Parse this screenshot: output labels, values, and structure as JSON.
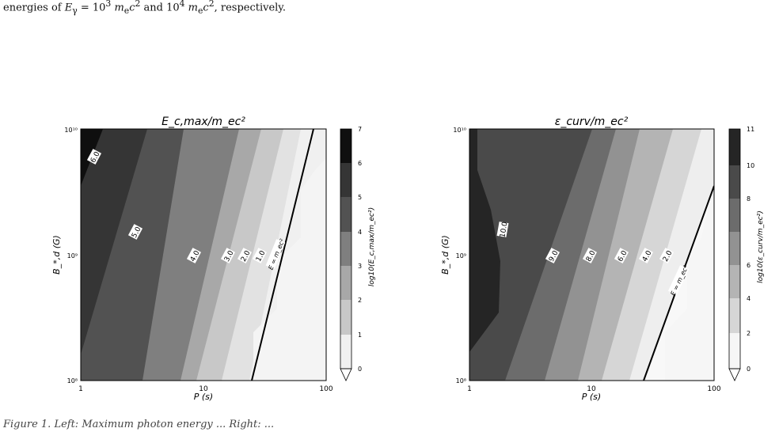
{
  "document": {
    "top_text": "energies of E_γ = 10³ m_ec² and 10⁴ m_ec², respectively.",
    "caption_fragment": "Figure 1. Left: Maximum photon energy ... Right: ..."
  },
  "chart_data": [
    {
      "type": "contour",
      "title": "E_c,max/m_ec²",
      "xlabel": "P (s)",
      "ylabel": "B_*,d (G)",
      "xscale": "log",
      "yscale": "log",
      "xlim": [
        1,
        100
      ],
      "ylim": [
        100000000.0,
        10000000000.0
      ],
      "x_ticks": [
        "1",
        "10",
        "100"
      ],
      "y_ticks": [
        "10⁸",
        "10⁹",
        "10¹⁰"
      ],
      "colorbar_label": "log10(E_c,max/m_ec²)",
      "colorbar_ticks": [
        "0",
        "1",
        "2",
        "3",
        "4",
        "5",
        "6",
        "7"
      ],
      "levels": [
        0,
        1,
        2,
        3,
        4,
        5,
        6,
        7
      ],
      "contour_labels": [
        "6.0",
        "5.0",
        "4.0",
        "3.0",
        "2.0",
        "1.0"
      ],
      "threshold_label": "E = m_ec²"
    },
    {
      "type": "contour",
      "title": "ε_curv/m_ec²",
      "xlabel": "P (s)",
      "ylabel": "B_*,d (G)",
      "xscale": "log",
      "yscale": "log",
      "xlim": [
        1,
        100
      ],
      "ylim": [
        100000000.0,
        10000000000.0
      ],
      "x_ticks": [
        "1",
        "10",
        "100"
      ],
      "y_ticks": [
        "10⁸",
        "10⁹",
        "10¹⁰"
      ],
      "colorbar_label": "log10(ε_curv/m_ec²)",
      "colorbar_ticks": [
        "0",
        "2",
        "4",
        "6",
        "8",
        "10",
        "11"
      ],
      "levels": [
        0,
        2,
        4,
        6,
        8,
        10,
        11
      ],
      "contour_labels": [
        "10.0",
        "9.0",
        "8.0",
        "6.0",
        "4.0",
        "2.0"
      ],
      "threshold_label": "E = m_ec²"
    }
  ]
}
